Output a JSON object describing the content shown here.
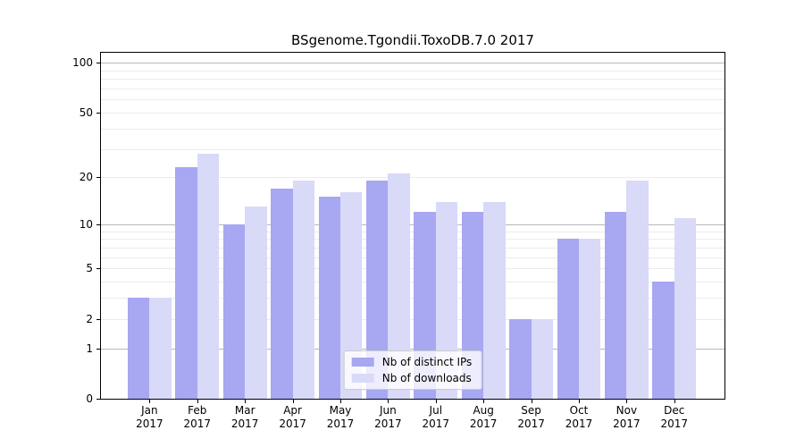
{
  "chart_data": {
    "type": "bar",
    "title": "BSgenome.Tgondii.ToxoDB.7.0 2017",
    "x_months": [
      "Jan",
      "Feb",
      "Mar",
      "Apr",
      "May",
      "Jun",
      "Jul",
      "Aug",
      "Sep",
      "Oct",
      "Nov",
      "Dec"
    ],
    "x_year": "2017",
    "series": [
      {
        "name": "Nb of distinct IPs",
        "color": "#a7a7f2",
        "values": [
          3,
          23,
          10,
          17,
          15,
          19,
          12,
          12,
          2,
          8,
          12,
          4
        ]
      },
      {
        "name": "Nb of downloads",
        "color": "#d9d9f8",
        "values": [
          3,
          28,
          13,
          19,
          16,
          21,
          14,
          14,
          2,
          8,
          19,
          11
        ]
      }
    ],
    "y_scale": "log1p",
    "y_axis_ticks": [
      100,
      50,
      20,
      10,
      5,
      2,
      1,
      0
    ],
    "y_major_gridlines": [
      1,
      10,
      100
    ],
    "y_minor_gridlines": [
      2,
      3,
      4,
      5,
      6,
      7,
      8,
      9,
      20,
      30,
      40,
      50,
      60,
      70,
      80,
      90
    ],
    "ylim": [
      0,
      116
    ],
    "grid": true,
    "legend_position": "lower center"
  },
  "colors": {
    "axis": "#000000",
    "major_grid": "#b8b8b8",
    "minor_grid": "#ebebeb",
    "legend_border": "#cccccc",
    "legend_background": "rgba(255,255,255,0.8)"
  }
}
